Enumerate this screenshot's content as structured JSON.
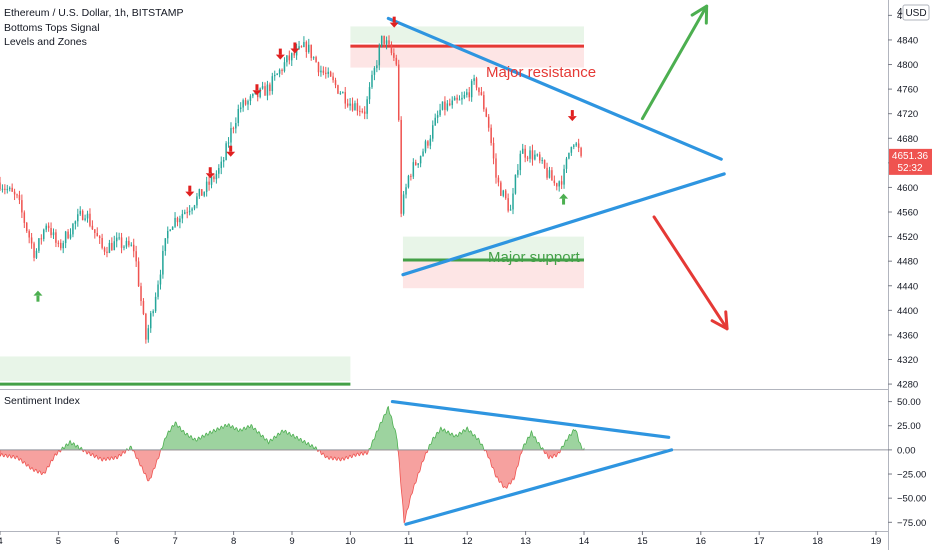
{
  "header": {
    "symbol_line": "Ethereum / U.S. Dollar, 1h, BITSTAMP",
    "indicators": [
      "Bottoms Tops Signal",
      "Levels and Zones"
    ]
  },
  "currency_badge": "USD",
  "axis_top_partial": "4",
  "price_tag": {
    "price": "4651.36",
    "countdown": "52:32"
  },
  "annotations": {
    "resistance": "Major resistance",
    "support": "Major support"
  },
  "sub_pane": {
    "title": "Sentiment Index"
  },
  "colors": {
    "up": "#26a69a",
    "down": "#ef5350",
    "trendline": "#2e95e0",
    "resistance": "#e53935",
    "support": "#43a047",
    "signal_down": "#e02020",
    "signal_up": "#4caf50",
    "price_tag": "#ef5350"
  },
  "chart_data": [
    {
      "type": "candlestick",
      "title": "Ethereum / U.S. Dollar, 1h, BITSTAMP",
      "price_axis": {
        "ticks": [
          4280,
          4320,
          4360,
          4400,
          4440,
          4480,
          4520,
          4560,
          4600,
          4640,
          4680,
          4720,
          4760,
          4800,
          4840,
          4880
        ],
        "ylim": [
          4272,
          4905
        ]
      },
      "time_axis": {
        "ticks": [
          "4",
          "5",
          "6",
          "7",
          "8",
          "9",
          "10",
          "11",
          "12",
          "13",
          "14",
          "15",
          "16",
          "17",
          "18",
          "19"
        ],
        "xlim": [
          4.0,
          19.0
        ]
      },
      "price_path": [
        {
          "x": 4.0,
          "y": 4608
        },
        {
          "x": 4.3,
          "y": 4580
        },
        {
          "x": 4.6,
          "y": 4490
        },
        {
          "x": 4.8,
          "y": 4545
        },
        {
          "x": 5.0,
          "y": 4500
        },
        {
          "x": 5.2,
          "y": 4532
        },
        {
          "x": 5.45,
          "y": 4562
        },
        {
          "x": 5.75,
          "y": 4500
        },
        {
          "x": 6.0,
          "y": 4510
        },
        {
          "x": 6.3,
          "y": 4500
        },
        {
          "x": 6.5,
          "y": 4352
        },
        {
          "x": 6.7,
          "y": 4445
        },
        {
          "x": 6.9,
          "y": 4540
        },
        {
          "x": 7.2,
          "y": 4565
        },
        {
          "x": 7.5,
          "y": 4595
        },
        {
          "x": 7.8,
          "y": 4635
        },
        {
          "x": 7.95,
          "y": 4690
        },
        {
          "x": 8.1,
          "y": 4730
        },
        {
          "x": 8.35,
          "y": 4745
        },
        {
          "x": 8.6,
          "y": 4762
        },
        {
          "x": 8.9,
          "y": 4805
        },
        {
          "x": 9.25,
          "y": 4830
        },
        {
          "x": 9.5,
          "y": 4790
        },
        {
          "x": 9.75,
          "y": 4765
        },
        {
          "x": 10.0,
          "y": 4738
        },
        {
          "x": 10.25,
          "y": 4725
        },
        {
          "x": 10.55,
          "y": 4845
        },
        {
          "x": 10.8,
          "y": 4800
        },
        {
          "x": 10.87,
          "y": 4560
        },
        {
          "x": 11.0,
          "y": 4620
        },
        {
          "x": 11.3,
          "y": 4670
        },
        {
          "x": 11.55,
          "y": 4728
        },
        {
          "x": 11.9,
          "y": 4740
        },
        {
          "x": 12.15,
          "y": 4772
        },
        {
          "x": 12.35,
          "y": 4712
        },
        {
          "x": 12.5,
          "y": 4612
        },
        {
          "x": 12.75,
          "y": 4560
        },
        {
          "x": 12.9,
          "y": 4660
        },
        {
          "x": 13.15,
          "y": 4652
        },
        {
          "x": 13.35,
          "y": 4625
        },
        {
          "x": 13.5,
          "y": 4605
        },
        {
          "x": 13.65,
          "y": 4618
        },
        {
          "x": 13.8,
          "y": 4682
        },
        {
          "x": 13.95,
          "y": 4651
        }
      ],
      "candle_count": 240,
      "levels": {
        "major_resistance": 4830,
        "major_support": 4482,
        "lower_support": 4280
      },
      "zones": [
        {
          "role": "resistance",
          "from_x": 10.0,
          "to_x": 14.0,
          "y_low": 4835,
          "y_high": 4862,
          "color": "green"
        },
        {
          "role": "resistance",
          "from_x": 10.0,
          "to_x": 14.0,
          "y_low": 4795,
          "y_high": 4830,
          "color": "red"
        },
        {
          "role": "support",
          "from_x": 10.9,
          "to_x": 14.0,
          "y_low": 4482,
          "y_high": 4520,
          "color": "green"
        },
        {
          "role": "support",
          "from_x": 10.9,
          "to_x": 14.0,
          "y_low": 4436,
          "y_high": 4482,
          "color": "red"
        },
        {
          "role": "support",
          "from_x": 4.0,
          "to_x": 10.0,
          "y_low": 4285,
          "y_high": 4325,
          "color": "green"
        }
      ],
      "trendlines": [
        {
          "from": {
            "x": 10.65,
            "y": 4875
          },
          "to": {
            "x": 16.35,
            "y": 4646
          }
        },
        {
          "from": {
            "x": 10.9,
            "y": 4458
          },
          "to": {
            "x": 16.4,
            "y": 4622
          }
        }
      ],
      "scenario_arrows": [
        {
          "direction": "up",
          "from": {
            "x": 15.0,
            "y": 4712
          },
          "to": {
            "x": 16.1,
            "y": 4895
          }
        },
        {
          "direction": "down",
          "from": {
            "x": 15.2,
            "y": 4552
          },
          "to": {
            "x": 16.45,
            "y": 4370
          }
        }
      ],
      "signals": [
        {
          "type": "bottom",
          "x": 4.65,
          "y": 4432
        },
        {
          "type": "top",
          "x": 7.25,
          "y": 4585
        },
        {
          "type": "top",
          "x": 7.6,
          "y": 4615
        },
        {
          "type": "top",
          "x": 7.95,
          "y": 4650
        },
        {
          "type": "top",
          "x": 8.4,
          "y": 4750
        },
        {
          "type": "top",
          "x": 8.8,
          "y": 4808
        },
        {
          "type": "top",
          "x": 9.05,
          "y": 4818
        },
        {
          "type": "top",
          "x": 10.75,
          "y": 4860
        },
        {
          "type": "top",
          "x": 13.8,
          "y": 4708
        },
        {
          "type": "bottom",
          "x": 13.65,
          "y": 4590
        }
      ],
      "last_price": 4651.36
    },
    {
      "type": "area",
      "title": "Sentiment Index",
      "y_axis": {
        "ticks": [
          50,
          25,
          0,
          -25,
          -50,
          -75
        ],
        "tick_labels": [
          "50.00",
          "25.00",
          "0.00",
          "−25.00",
          "−50.00",
          "−75.00"
        ],
        "ylim": [
          -84,
          62
        ]
      },
      "series": [
        {
          "values_at_x": [
            {
              "x": 4.0,
              "y": -5
            },
            {
              "x": 4.3,
              "y": -8
            },
            {
              "x": 4.55,
              "y": -20
            },
            {
              "x": 4.75,
              "y": -25
            },
            {
              "x": 4.95,
              "y": -5
            },
            {
              "x": 5.2,
              "y": 8
            },
            {
              "x": 5.5,
              "y": -3
            },
            {
              "x": 5.75,
              "y": -10
            },
            {
              "x": 6.0,
              "y": -8
            },
            {
              "x": 6.25,
              "y": 3
            },
            {
              "x": 6.4,
              "y": -15
            },
            {
              "x": 6.55,
              "y": -33
            },
            {
              "x": 6.7,
              "y": -10
            },
            {
              "x": 6.85,
              "y": 15
            },
            {
              "x": 7.0,
              "y": 28
            },
            {
              "x": 7.15,
              "y": 18
            },
            {
              "x": 7.35,
              "y": 10
            },
            {
              "x": 7.6,
              "y": 18
            },
            {
              "x": 7.9,
              "y": 26
            },
            {
              "x": 8.1,
              "y": 20
            },
            {
              "x": 8.3,
              "y": 25
            },
            {
              "x": 8.6,
              "y": 8
            },
            {
              "x": 8.85,
              "y": 20
            },
            {
              "x": 9.1,
              "y": 12
            },
            {
              "x": 9.4,
              "y": 2
            },
            {
              "x": 9.6,
              "y": -8
            },
            {
              "x": 9.85,
              "y": -10
            },
            {
              "x": 10.1,
              "y": -5
            },
            {
              "x": 10.3,
              "y": -3
            },
            {
              "x": 10.5,
              "y": 25
            },
            {
              "x": 10.65,
              "y": 44
            },
            {
              "x": 10.8,
              "y": 12
            },
            {
              "x": 10.92,
              "y": -75
            },
            {
              "x": 11.05,
              "y": -45
            },
            {
              "x": 11.25,
              "y": -10
            },
            {
              "x": 11.4,
              "y": 10
            },
            {
              "x": 11.55,
              "y": 22
            },
            {
              "x": 11.8,
              "y": 14
            },
            {
              "x": 12.0,
              "y": 22
            },
            {
              "x": 12.2,
              "y": 10
            },
            {
              "x": 12.35,
              "y": -5
            },
            {
              "x": 12.5,
              "y": -28
            },
            {
              "x": 12.65,
              "y": -40
            },
            {
              "x": 12.8,
              "y": -30
            },
            {
              "x": 12.95,
              "y": 2
            },
            {
              "x": 13.1,
              "y": 18
            },
            {
              "x": 13.25,
              "y": 4
            },
            {
              "x": 13.4,
              "y": -8
            },
            {
              "x": 13.55,
              "y": -5
            },
            {
              "x": 13.72,
              "y": 12
            },
            {
              "x": 13.85,
              "y": 22
            },
            {
              "x": 13.95,
              "y": 3
            },
            {
              "x": 14.0,
              "y": 0
            }
          ]
        }
      ],
      "trendlines": [
        {
          "from": {
            "x": 10.72,
            "y": 50
          },
          "to": {
            "x": 15.45,
            "y": 13
          }
        },
        {
          "from": {
            "x": 10.95,
            "y": -77
          },
          "to": {
            "x": 15.5,
            "y": 0
          }
        }
      ]
    }
  ]
}
